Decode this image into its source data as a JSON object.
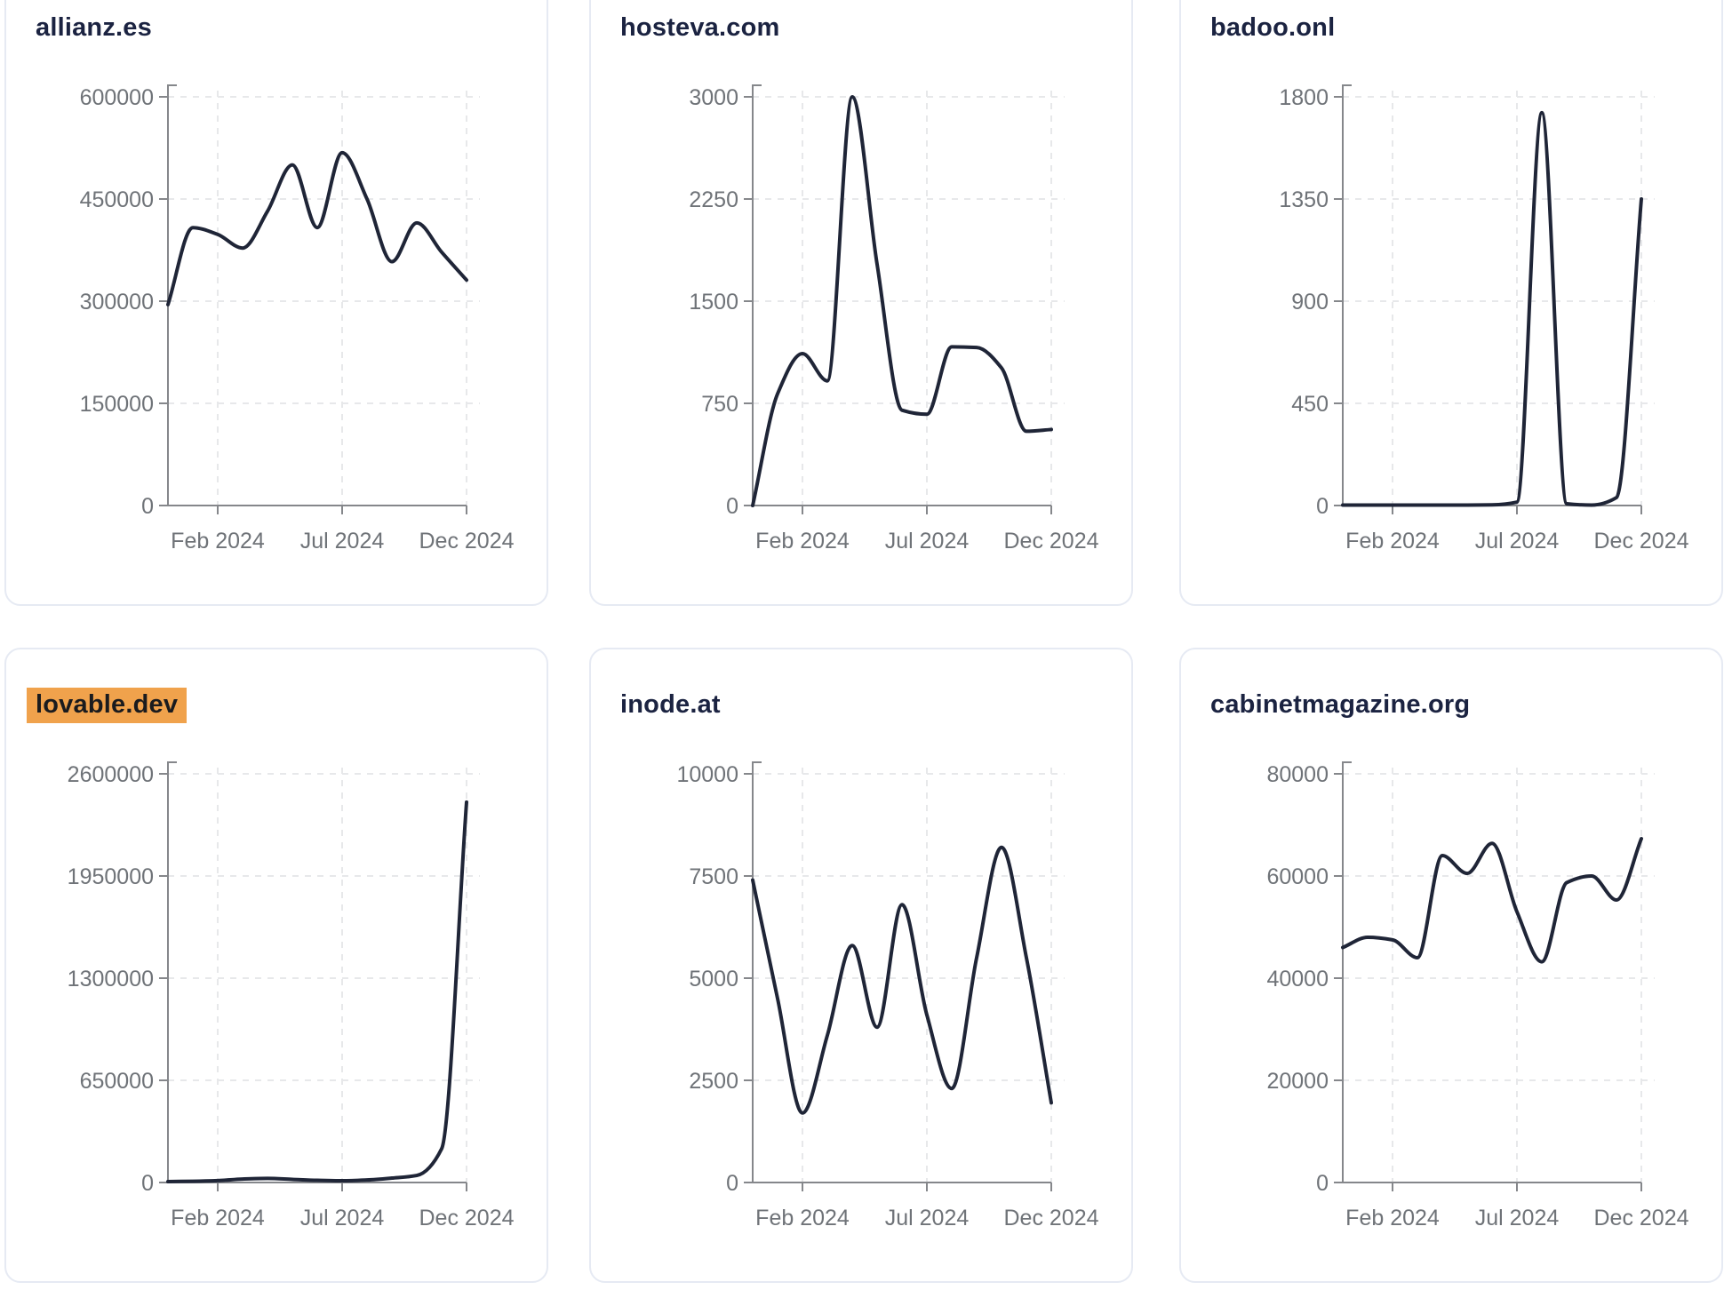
{
  "style": {
    "page_bg": "#ffffff",
    "card_bg": "#ffffff",
    "card_border": "#e6eaf3",
    "line_color": "#1f2537",
    "title_color": "#1b2341",
    "tick_label_color": "#6f7378",
    "axis_color": "#85878b",
    "grid_color": "#e7e8ea",
    "highlight_color": "#f0a24c"
  },
  "chart_data": [
    {
      "type": "line",
      "title": "allianz.es",
      "title_highlighted": false,
      "x_months": [
        "Dec 2023",
        "Jan 2024",
        "Feb 2024",
        "Mar 2024",
        "Apr 2024",
        "May 2024",
        "Jun 2024",
        "Jul 2024",
        "Aug 2024",
        "Sep 2024",
        "Oct 2024",
        "Nov 2024",
        "Dec 2024"
      ],
      "x_tick_labels": [
        "Feb 2024",
        "Jul 2024",
        "Dec 2024"
      ],
      "x_tick_indices": [
        2,
        7,
        12
      ],
      "values": [
        295000,
        408000,
        398000,
        378000,
        432000,
        500000,
        408000,
        518000,
        450000,
        358000,
        415000,
        372000,
        331000
      ],
      "ylim": [
        0,
        600000
      ],
      "y_ticks": [
        0,
        150000,
        300000,
        450000,
        600000
      ],
      "grid": true,
      "legend": "none"
    },
    {
      "type": "line",
      "title": "hosteva.com",
      "title_highlighted": false,
      "x_months": [
        "Dec 2023",
        "Jan 2024",
        "Feb 2024",
        "Mar 2024",
        "Apr 2024",
        "May 2024",
        "Jun 2024",
        "Jul 2024",
        "Aug 2024",
        "Sep 2024",
        "Oct 2024",
        "Nov 2024",
        "Dec 2024"
      ],
      "x_tick_labels": [
        "Feb 2024",
        "Jul 2024",
        "Dec 2024"
      ],
      "x_tick_indices": [
        2,
        7,
        12
      ],
      "values": [
        0,
        820,
        1115,
        915,
        3000,
        1770,
        700,
        670,
        1165,
        1160,
        1010,
        545,
        558
      ],
      "ylim": [
        0,
        3000
      ],
      "y_ticks": [
        0,
        750,
        1500,
        2250,
        3000
      ],
      "grid": true,
      "legend": "none"
    },
    {
      "type": "line",
      "title": "badoo.onl",
      "title_highlighted": false,
      "x_months": [
        "Dec 2023",
        "Jan 2024",
        "Feb 2024",
        "Mar 2024",
        "Apr 2024",
        "May 2024",
        "Jun 2024",
        "Jul 2024",
        "Aug 2024",
        "Sep 2024",
        "Oct 2024",
        "Nov 2024",
        "Dec 2024"
      ],
      "x_tick_labels": [
        "Feb 2024",
        "Jul 2024",
        "Dec 2024"
      ],
      "x_tick_indices": [
        2,
        7,
        12
      ],
      "values": [
        2,
        2,
        2,
        2,
        2,
        2,
        3,
        15,
        1730,
        8,
        2,
        35,
        1350
      ],
      "ylim": [
        0,
        1800
      ],
      "y_ticks": [
        0,
        450,
        900,
        1350,
        1800
      ],
      "grid": true,
      "legend": "none"
    },
    {
      "type": "line",
      "title": "lovable.dev",
      "title_highlighted": true,
      "x_months": [
        "Dec 2023",
        "Jan 2024",
        "Feb 2024",
        "Mar 2024",
        "Apr 2024",
        "May 2024",
        "Jun 2024",
        "Jul 2024",
        "Aug 2024",
        "Sep 2024",
        "Oct 2024",
        "Nov 2024",
        "Dec 2024"
      ],
      "x_tick_labels": [
        "Feb 2024",
        "Jul 2024",
        "Dec 2024"
      ],
      "x_tick_indices": [
        2,
        7,
        12
      ],
      "values": [
        6000,
        8000,
        12000,
        22000,
        26000,
        20000,
        14000,
        11000,
        16000,
        28000,
        45000,
        215000,
        2420000
      ],
      "ylim": [
        0,
        2600000
      ],
      "y_ticks": [
        0,
        650000,
        1300000,
        1950000,
        2600000
      ],
      "grid": true,
      "legend": "none"
    },
    {
      "type": "line",
      "title": "inode.at",
      "title_highlighted": false,
      "x_months": [
        "Dec 2023",
        "Jan 2024",
        "Feb 2024",
        "Mar 2024",
        "Apr 2024",
        "May 2024",
        "Jun 2024",
        "Jul 2024",
        "Aug 2024",
        "Sep 2024",
        "Oct 2024",
        "Nov 2024",
        "Dec 2024"
      ],
      "x_tick_labels": [
        "Feb 2024",
        "Jul 2024",
        "Dec 2024"
      ],
      "x_tick_indices": [
        2,
        7,
        12
      ],
      "values": [
        7400,
        4500,
        1700,
        3600,
        5800,
        3800,
        6800,
        4100,
        2300,
        5500,
        8200,
        5500,
        1950
      ],
      "ylim": [
        0,
        10000
      ],
      "y_ticks": [
        0,
        2500,
        5000,
        7500,
        10000
      ],
      "grid": true,
      "legend": "none"
    },
    {
      "type": "line",
      "title": "cabinetmagazine.org",
      "title_highlighted": false,
      "x_months": [
        "Dec 2023",
        "Jan 2024",
        "Feb 2024",
        "Mar 2024",
        "Apr 2024",
        "May 2024",
        "Jun 2024",
        "Jul 2024",
        "Aug 2024",
        "Sep 2024",
        "Oct 2024",
        "Nov 2024",
        "Dec 2024"
      ],
      "x_tick_labels": [
        "Feb 2024",
        "Jul 2024",
        "Dec 2024"
      ],
      "x_tick_indices": [
        2,
        7,
        12
      ],
      "values": [
        46000,
        48000,
        47500,
        44000,
        64000,
        60500,
        66400,
        53000,
        43200,
        58700,
        60000,
        55300,
        67300
      ],
      "ylim": [
        0,
        80000
      ],
      "y_ticks": [
        0,
        20000,
        40000,
        60000,
        80000
      ],
      "grid": true,
      "legend": "none"
    }
  ]
}
